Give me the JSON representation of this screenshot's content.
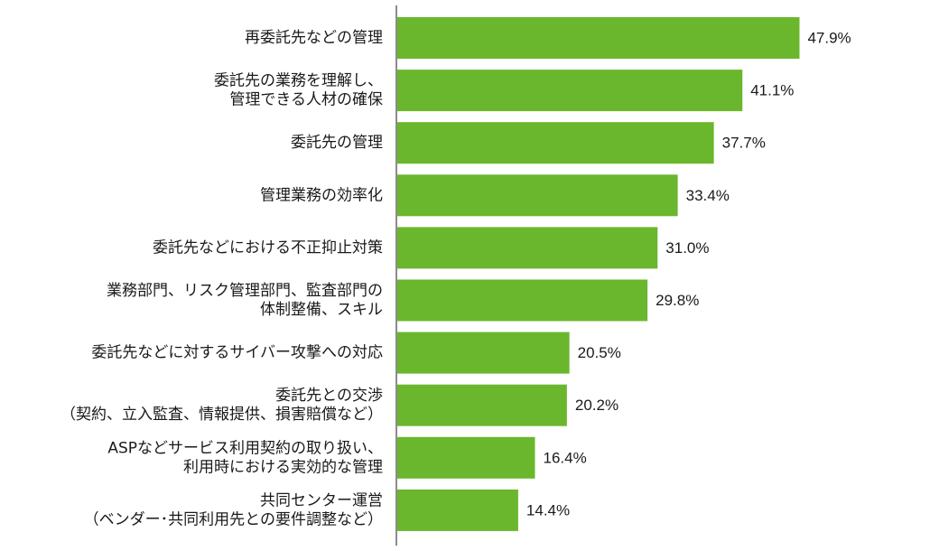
{
  "chart_data": {
    "type": "bar",
    "orientation": "horizontal",
    "title": "",
    "xlabel": "",
    "ylabel": "",
    "xlim": [
      0,
      55
    ],
    "grid": false,
    "legend": "none",
    "bar_color": "#6ab72d",
    "axis_color": "#8c8c8c",
    "value_suffix": "%",
    "categories": [
      [
        "再委託先などの管理"
      ],
      [
        "委託先の業務を理解し、",
        "管理できる人材の確保"
      ],
      [
        "委託先の管理"
      ],
      [
        "管理業務の効率化"
      ],
      [
        "委託先などにおける不正抑止対策"
      ],
      [
        "業務部門、リスク管理部門、監査部門の",
        "体制整備、スキル"
      ],
      [
        "委託先などに対するサイバー攻撃への対応"
      ],
      [
        "委託先との交渉",
        "（契約、立入監査、情報提供、損害賠償など）"
      ],
      [
        "ASPなどサービス利用契約の取り扱い、",
        "利用時における実効的な管理"
      ],
      [
        "共同センター運営",
        "（ベンダー･共同利用先との要件調整など）"
      ]
    ],
    "values": [
      47.9,
      41.1,
      37.7,
      33.4,
      31.0,
      29.8,
      20.5,
      20.2,
      16.4,
      14.4
    ],
    "value_labels": [
      "47.9%",
      "41.1%",
      "37.7%",
      "33.4%",
      "31.0%",
      "29.8%",
      "20.5%",
      "20.2%",
      "16.4%",
      "14.4%"
    ]
  }
}
